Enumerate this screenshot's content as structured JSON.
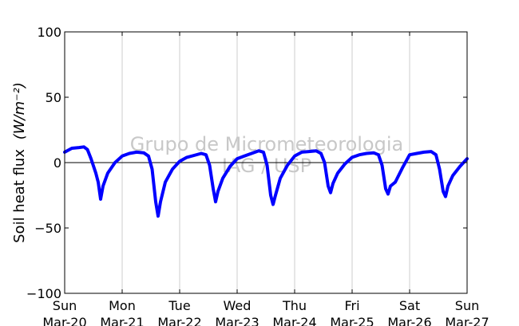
{
  "chart_data": {
    "type": "line",
    "title": "",
    "xlabel": "",
    "ylabel": "Soil heat flux",
    "ylabel_unit": "(W/m⁻²)",
    "ylim": [
      -100,
      100
    ],
    "yticks": [
      {
        "value": 100,
        "label": "100"
      },
      {
        "value": 50,
        "label": "50"
      },
      {
        "value": 0,
        "label": "0"
      },
      {
        "value": -50,
        "label": "−50"
      },
      {
        "value": -100,
        "label": "−100"
      }
    ],
    "xlim": [
      "2011-03-20",
      "2011-03-27"
    ],
    "xticks": [
      {
        "day": "Sun",
        "date": "Mar-20"
      },
      {
        "day": "Mon",
        "date": "Mar-21"
      },
      {
        "day": "Tue",
        "date": "Mar-22"
      },
      {
        "day": "Wed",
        "date": "Mar-23"
      },
      {
        "day": "Thu",
        "date": "Mar-24"
      },
      {
        "day": "Fri",
        "date": "Mar-25"
      },
      {
        "day": "Sat",
        "date": "Mar-26"
      },
      {
        "day": "Sun",
        "date": "Mar-27"
      }
    ],
    "grid": "vertical",
    "zero_line": true,
    "watermark": [
      "Grupo de Micrometeorologia",
      "IAG / USP"
    ],
    "series": [
      {
        "color": "#0000ff",
        "points": [
          [
            "2011-03-20 00:00",
            8
          ],
          [
            "2011-03-20 03:00",
            11
          ],
          [
            "2011-03-20 06:00",
            11.5
          ],
          [
            "2011-03-20 08:00",
            12
          ],
          [
            "2011-03-20 09:30",
            10
          ],
          [
            "2011-03-20 11:00",
            3
          ],
          [
            "2011-03-20 13:00",
            -8
          ],
          [
            "2011-03-20 14:00",
            -15
          ],
          [
            "2011-03-20 15:00",
            -28
          ],
          [
            "2011-03-20 16:00",
            -18
          ],
          [
            "2011-03-20 18:00",
            -8
          ],
          [
            "2011-03-20 21:00",
            0
          ],
          [
            "2011-03-21 00:00",
            5
          ],
          [
            "2011-03-21 03:00",
            7
          ],
          [
            "2011-03-21 06:00",
            8
          ],
          [
            "2011-03-21 09:00",
            7.5
          ],
          [
            "2011-03-21 11:00",
            5
          ],
          [
            "2011-03-21 12:30",
            -5
          ],
          [
            "2011-03-21 14:00",
            -30
          ],
          [
            "2011-03-21 15:00",
            -41
          ],
          [
            "2011-03-21 16:00",
            -30
          ],
          [
            "2011-03-21 18:00",
            -15
          ],
          [
            "2011-03-21 21:00",
            -5
          ],
          [
            "2011-03-22 00:00",
            1
          ],
          [
            "2011-03-22 03:00",
            4
          ],
          [
            "2011-03-22 06:00",
            5.5
          ],
          [
            "2011-03-22 09:00",
            7
          ],
          [
            "2011-03-22 11:00",
            6
          ],
          [
            "2011-03-22 12:30",
            -2
          ],
          [
            "2011-03-22 14:00",
            -20
          ],
          [
            "2011-03-22 15:00",
            -30
          ],
          [
            "2011-03-22 16:00",
            -22
          ],
          [
            "2011-03-22 18:00",
            -12
          ],
          [
            "2011-03-22 21:00",
            -3
          ],
          [
            "2011-03-23 00:00",
            3
          ],
          [
            "2011-03-23 03:00",
            5
          ],
          [
            "2011-03-23 06:00",
            7
          ],
          [
            "2011-03-23 09:00",
            9
          ],
          [
            "2011-03-23 11:00",
            8
          ],
          [
            "2011-03-23 12:30",
            -2
          ],
          [
            "2011-03-23 14:00",
            -25
          ],
          [
            "2011-03-23 15:00",
            -32
          ],
          [
            "2011-03-23 16:00",
            -25
          ],
          [
            "2011-03-23 18:00",
            -12
          ],
          [
            "2011-03-23 21:00",
            -2
          ],
          [
            "2011-03-24 00:00",
            5
          ],
          [
            "2011-03-24 03:00",
            8
          ],
          [
            "2011-03-24 06:00",
            8.5
          ],
          [
            "2011-03-24 09:00",
            9
          ],
          [
            "2011-03-24 11:00",
            7
          ],
          [
            "2011-03-24 12:30",
            0
          ],
          [
            "2011-03-24 14:00",
            -18
          ],
          [
            "2011-03-24 15:00",
            -23
          ],
          [
            "2011-03-24 16:00",
            -16
          ],
          [
            "2011-03-24 18:00",
            -8
          ],
          [
            "2011-03-24 21:00",
            -1
          ],
          [
            "2011-03-25 00:00",
            4
          ],
          [
            "2011-03-25 03:00",
            6
          ],
          [
            "2011-03-25 06:00",
            7
          ],
          [
            "2011-03-25 09:00",
            7.5
          ],
          [
            "2011-03-25 11:00",
            6
          ],
          [
            "2011-03-25 12:30",
            -2
          ],
          [
            "2011-03-25 14:00",
            -20
          ],
          [
            "2011-03-25 15:00",
            -24
          ],
          [
            "2011-03-25 16:00",
            -18
          ],
          [
            "2011-03-25 18:00",
            -15
          ],
          [
            "2011-03-25 21:00",
            -4
          ],
          [
            "2011-03-26 00:00",
            6
          ],
          [
            "2011-03-26 03:00",
            7
          ],
          [
            "2011-03-26 06:00",
            8
          ],
          [
            "2011-03-26 09:00",
            8.5
          ],
          [
            "2011-03-26 11:00",
            6
          ],
          [
            "2011-03-26 12:30",
            -5
          ],
          [
            "2011-03-26 14:00",
            -22
          ],
          [
            "2011-03-26 15:00",
            -26
          ],
          [
            "2011-03-26 16:00",
            -18
          ],
          [
            "2011-03-26 18:00",
            -10
          ],
          [
            "2011-03-26 21:00",
            -3
          ],
          [
            "2011-03-27 00:00",
            3
          ]
        ]
      }
    ]
  }
}
